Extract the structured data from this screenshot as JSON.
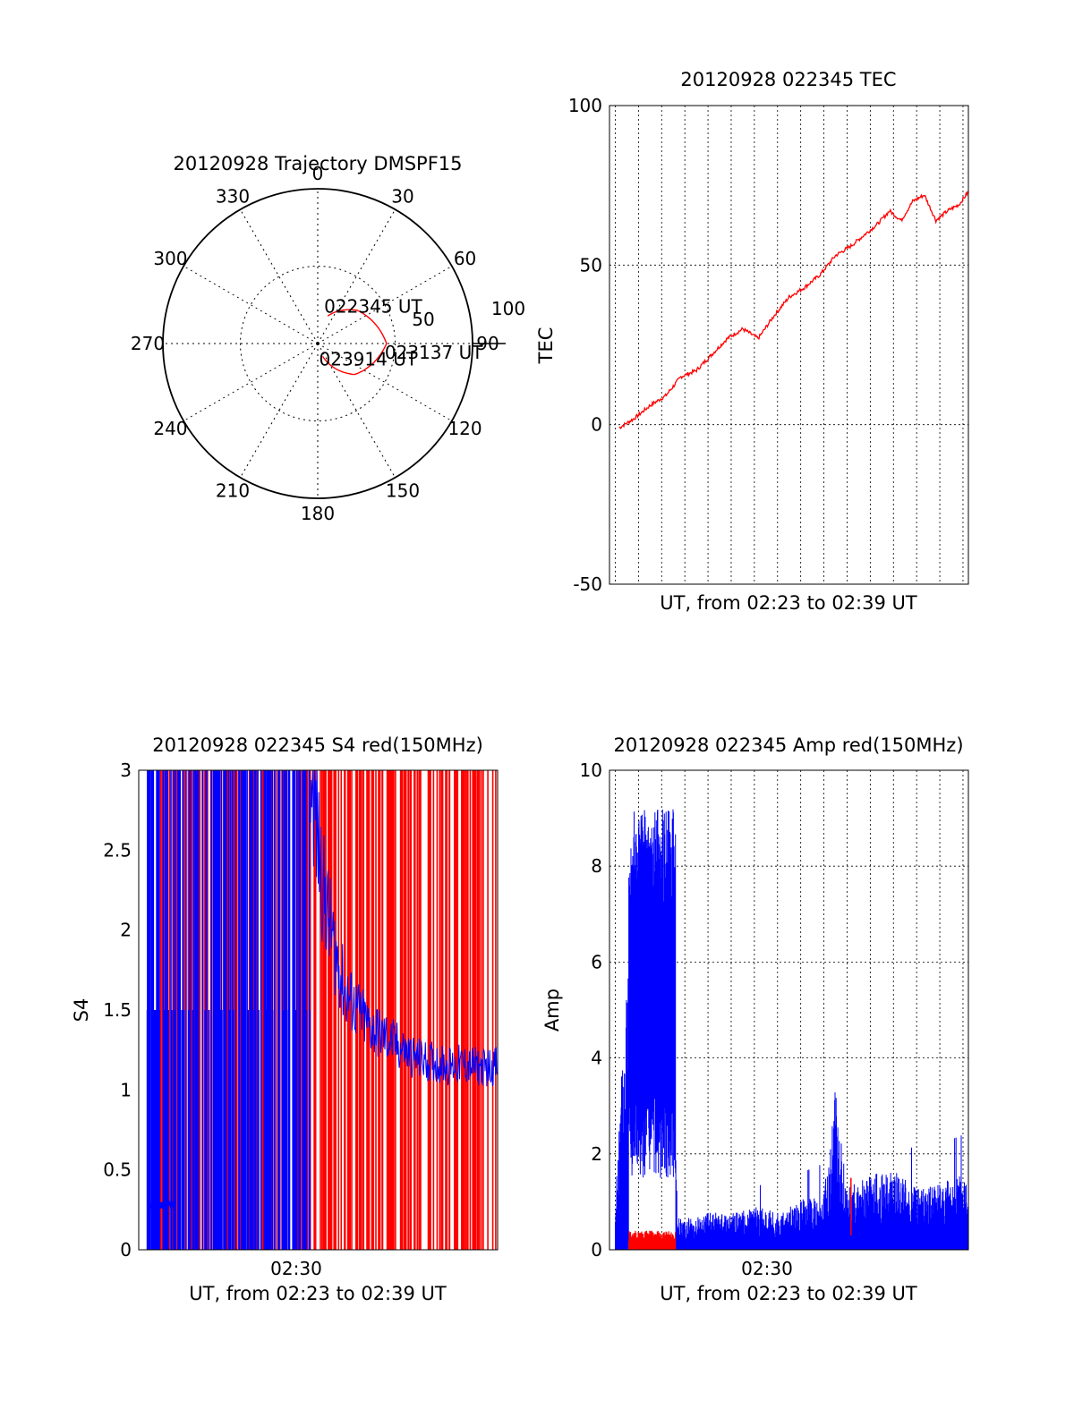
{
  "chart_data": [
    {
      "type": "polar",
      "title": "20120928 Trajectory DMSPF15",
      "angle_ticks": [
        "0",
        "30",
        "60",
        "90",
        "120",
        "150",
        "180",
        "210",
        "240",
        "270",
        "300",
        "330"
      ],
      "radial_ticks": [
        "50",
        "100"
      ],
      "rlim": [
        0,
        100
      ],
      "trajectory": {
        "color": "#ff0000",
        "points": [
          {
            "az": 20,
            "el": 73,
            "label": "022345 UT"
          },
          {
            "az": 50,
            "el": 60
          },
          {
            "az": 90,
            "el": 50,
            "label": "023137 UT"
          },
          {
            "az": 130,
            "el": 62
          },
          {
            "az": 159,
            "el": 82,
            "label": "023914 UT"
          }
        ]
      }
    },
    {
      "type": "line",
      "title": "20120928 022345 TEC",
      "xlabel": "UT, from 02:23 to 02:39 UT",
      "ylabel": "TEC",
      "ylim": [
        -50,
        100
      ],
      "yticks": [
        "-50",
        "0",
        "50",
        "100"
      ],
      "xlim": [
        "02:23:45",
        "02:39:14"
      ],
      "grid": true,
      "series": [
        {
          "color": "#ff0000",
          "x": [
            "02:24:10",
            "02:24:50",
            "02:25:30",
            "02:26:10",
            "02:26:50",
            "02:27:30",
            "02:28:10",
            "02:28:50",
            "02:29:30",
            "02:30:10",
            "02:30:50",
            "02:31:30",
            "02:32:10",
            "02:32:50",
            "02:33:30",
            "02:34:10",
            "02:34:50",
            "02:35:20",
            "02:35:50",
            "02:36:20",
            "02:36:50",
            "02:37:20",
            "02:37:50",
            "02:38:20",
            "02:38:50",
            "02:39:14"
          ],
          "values": [
            -1,
            2,
            6,
            9,
            15,
            17,
            22,
            27,
            30,
            27,
            34,
            40,
            43,
            47,
            53,
            56,
            60,
            63,
            67,
            64,
            70,
            72,
            64,
            67,
            69,
            73
          ]
        }
      ]
    },
    {
      "type": "line",
      "title": "20120928 022345 S4 red(150MHz)",
      "xlabel": "UT, from 02:23 to 02:39 UT",
      "ylabel": "S4",
      "ylim": [
        0,
        3
      ],
      "yticks": [
        "0",
        "0.5",
        "1",
        "1.5",
        "2",
        "2.5",
        "3"
      ],
      "xlim": [
        "02:23:45",
        "02:39:14"
      ],
      "xticks": [
        "02:30"
      ],
      "grid": false,
      "series": [
        {
          "color": "#ff0000",
          "x": [
            "02:24:00",
            "02:26:00",
            "02:28:00",
            "02:30:00",
            "02:32:00",
            "02:34:00",
            "02:36:00",
            "02:38:00",
            "02:39:00"
          ],
          "values": [
            3,
            3,
            3,
            3,
            3,
            3,
            3,
            3,
            3
          ]
        },
        {
          "color": "#0000ff",
          "x": [
            "02:24:10",
            "02:24:40",
            "02:25:10",
            "02:25:40",
            "02:26:10",
            "02:26:40",
            "02:27:10",
            "02:27:40",
            "02:28:10",
            "02:28:40",
            "02:29:10",
            "02:29:40",
            "02:30:10",
            "02:30:40",
            "02:31:10",
            "02:31:40",
            "02:32:10",
            "02:32:40",
            "02:33:10",
            "02:33:40",
            "02:34:10",
            "02:34:40",
            "02:35:10",
            "02:35:40",
            "02:36:10",
            "02:36:40",
            "02:37:10",
            "02:37:40",
            "02:38:10",
            "02:38:40",
            "02:39:10"
          ],
          "values": [
            0.28,
            0.29,
            0.3,
            0.29,
            1.5,
            1.5,
            1.5,
            1.5,
            1.5,
            1.5,
            1.5,
            1.5,
            1.5,
            1.5,
            3.0,
            2.3,
            1.9,
            1.6,
            1.5,
            1.4,
            1.35,
            1.3,
            1.25,
            1.2,
            1.18,
            1.17,
            1.15,
            1.16,
            1.15,
            1.14,
            1.15
          ]
        }
      ]
    },
    {
      "type": "line",
      "title": "20120928 022345 Amp red(150MHz)",
      "xlabel": "UT, from 02:23 to 02:39 UT",
      "ylabel": "Amp",
      "ylim": [
        0,
        10
      ],
      "yticks": [
        "0",
        "2",
        "4",
        "6",
        "8",
        "10"
      ],
      "xlim": [
        "02:23:45",
        "02:39:14"
      ],
      "xticks": [
        "02:30"
      ],
      "grid": true,
      "series": [
        {
          "color": "#ff0000",
          "x": [
            "02:24:35",
            "02:25:00",
            "02:25:30",
            "02:26:00",
            "02:26:35",
            "02:34:10"
          ],
          "values": [
            0.3,
            0.35,
            0.4,
            0.3,
            0.3,
            1.5
          ]
        },
        {
          "color": "#0000ff",
          "x": [
            "02:24:00",
            "02:24:35",
            "02:25:00",
            "02:25:30",
            "02:26:00",
            "02:26:35",
            "02:26:40",
            "02:28:00",
            "02:29:00",
            "02:30:00",
            "02:31:00",
            "02:32:00",
            "02:33:00",
            "02:33:30",
            "02:34:00",
            "02:35:00",
            "02:36:00",
            "02:37:00",
            "02:38:00",
            "02:39:00"
          ],
          "values": [
            0.7,
            5.5,
            6.0,
            5.0,
            5.5,
            5.0,
            0.5,
            0.6,
            0.6,
            0.7,
            0.6,
            0.8,
            0.9,
            2.6,
            1.0,
            1.2,
            1.3,
            1.0,
            1.1,
            1.2
          ]
        }
      ]
    }
  ]
}
